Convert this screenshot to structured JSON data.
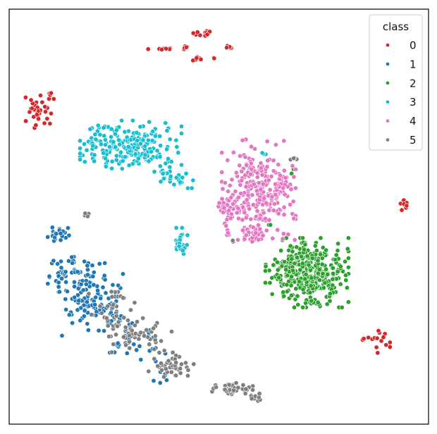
{
  "chart_data": {
    "type": "scatter",
    "title": "",
    "xlabel": "",
    "ylabel": "",
    "axes_visible": false,
    "grid": false,
    "xlim": [
      0,
      100
    ],
    "ylim": [
      0,
      100
    ],
    "legend": {
      "title": "class",
      "position": "top-right"
    },
    "series": [
      {
        "name": "0",
        "color": "#d62728",
        "clusters": [
          {
            "center": [
              46.5,
              94.0
            ],
            "spread": [
              1.2,
              0.5
            ],
            "count": 14
          },
          {
            "center": [
              52.5,
              91.0
            ],
            "spread": [
              0.4,
              0.4
            ],
            "count": 6
          },
          {
            "center": [
              36.5,
              90.4
            ],
            "spread": [
              1.6,
              0.2
            ],
            "count": 12
          },
          {
            "center": [
              42.0,
              90.4
            ],
            "spread": [
              0.4,
              0.4
            ],
            "count": 5
          },
          {
            "center": [
              44.5,
              88.1
            ],
            "spread": [
              0.6,
              0.3
            ],
            "count": 7
          },
          {
            "center": [
              49.0,
              88.2
            ],
            "spread": [
              0.2,
              0.2
            ],
            "count": 2
          },
          {
            "center": [
              6.5,
              74.8
            ],
            "spread": [
              1.6,
              2.0
            ],
            "count": 35
          },
          {
            "center": [
              10.0,
              79.3
            ],
            "spread": [
              0.8,
              0.5
            ],
            "count": 6
          },
          {
            "center": [
              94.5,
              52.3
            ],
            "spread": [
              0.6,
              1.5
            ],
            "count": 12
          },
          {
            "center": [
              87.5,
              19.9
            ],
            "spread": [
              1.5,
              1.3
            ],
            "count": 16
          }
        ]
      },
      {
        "name": "1",
        "color": "#1f77b4",
        "clusters": [
          {
            "center": [
              12.5,
              45.9
            ],
            "spread": [
              1.5,
              1.2
            ],
            "count": 24
          },
          {
            "center": [
              15.5,
              37.0
            ],
            "spread": [
              3.5,
              1.5
            ],
            "count": 45
          },
          {
            "center": [
              19.5,
              29.0
            ],
            "spread": [
              3.5,
              3.5
            ],
            "count": 120
          },
          {
            "center": [
              28.0,
              20.0
            ],
            "spread": [
              3.5,
              2.0
            ],
            "count": 25
          },
          {
            "center": [
              35.0,
              14.0
            ],
            "spread": [
              2.5,
              2.0
            ],
            "count": 12
          }
        ]
      },
      {
        "name": "2",
        "color": "#2ca02c",
        "clusters": [
          {
            "center": [
              71.0,
              36.5
            ],
            "spread": [
              4.5,
              3.8
            ],
            "count": 360
          },
          {
            "center": [
              62.0,
              48.0
            ],
            "spread": [
              0.3,
              0.3
            ],
            "count": 2
          },
          {
            "center": [
              68.0,
              61.0
            ],
            "spread": [
              0.3,
              0.3
            ],
            "count": 2
          }
        ]
      },
      {
        "name": "3",
        "color": "#17becf",
        "clusters": [
          {
            "center": [
              29.0,
              67.0
            ],
            "spread": [
              5.5,
              2.8
            ],
            "count": 230
          },
          {
            "center": [
              39.5,
              59.5
            ],
            "spread": [
              2.0,
              1.2
            ],
            "count": 25
          },
          {
            "center": [
              41.0,
              44.0
            ],
            "spread": [
              0.8,
              1.5
            ],
            "count": 30
          },
          {
            "center": [
              60.5,
              65.0
            ],
            "spread": [
              0.5,
              0.4
            ],
            "count": 3
          },
          {
            "center": [
              57.0,
              61.0
            ],
            "spread": [
              0.3,
              0.3
            ],
            "count": 2
          }
        ]
      },
      {
        "name": "4",
        "color": "#e377c2",
        "clusters": [
          {
            "center": [
              59.5,
              56.5
            ],
            "spread": [
              4.0,
              5.5
            ],
            "count": 280
          },
          {
            "center": [
              52.0,
              52.5
            ],
            "spread": [
              1.5,
              1.0
            ],
            "count": 25
          },
          {
            "center": [
              58.0,
              46.0
            ],
            "spread": [
              1.5,
              1.2
            ],
            "count": 25
          },
          {
            "center": [
              52.0,
              47.0
            ],
            "spread": [
              0.5,
              1.0
            ],
            "count": 5
          }
        ]
      },
      {
        "name": "5",
        "color": "#7f7f7f",
        "clusters": [
          {
            "center": [
              24.5,
              27.0
            ],
            "spread": [
              2.5,
              3.5
            ],
            "count": 35
          },
          {
            "center": [
              31.5,
              22.0
            ],
            "spread": [
              3.5,
              2.5
            ],
            "count": 50
          },
          {
            "center": [
              38.5,
              13.5
            ],
            "spread": [
              2.5,
              1.8
            ],
            "count": 40
          },
          {
            "center": [
              53.5,
              8.5
            ],
            "spread": [
              2.5,
              0.7
            ],
            "count": 35
          },
          {
            "center": [
              58.5,
              6.5
            ],
            "spread": [
              1.0,
              0.8
            ],
            "count": 10
          },
          {
            "center": [
              18.5,
              50.4
            ],
            "spread": [
              0.7,
              0.3
            ],
            "count": 5
          },
          {
            "center": [
              68.0,
              64.0
            ],
            "spread": [
              0.8,
              0.3
            ],
            "count": 4
          },
          {
            "center": [
              53.5,
              44.0
            ],
            "spread": [
              0.3,
              0.3
            ],
            "count": 2
          }
        ]
      }
    ]
  }
}
